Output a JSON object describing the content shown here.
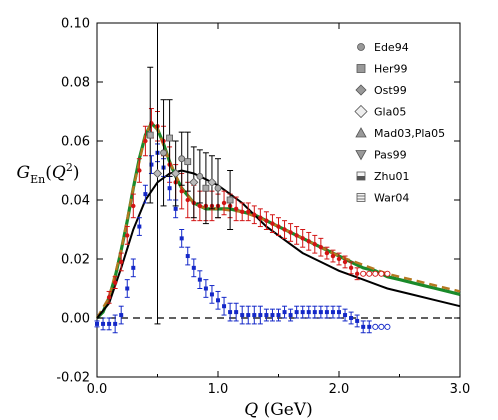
{
  "chart_data": {
    "type": "scatter",
    "xlim": [
      0,
      3.0
    ],
    "ylim": [
      -0.02,
      0.1
    ],
    "xticks": [
      "0.0",
      "1.0",
      "2.0",
      "3.0"
    ],
    "yticks": [
      "-0.02",
      "0.00",
      "0.02",
      "0.04",
      "0.06",
      "0.08",
      "0.10"
    ],
    "xlabel": "Q (GeV)",
    "ylabel": "G_En(Q^2)",
    "grid": false,
    "legend_position": "top-right",
    "legend": [
      {
        "label": "Ede94",
        "marker": "circle"
      },
      {
        "label": "Her99",
        "marker": "square"
      },
      {
        "label": "Ost99",
        "marker": "diamond"
      },
      {
        "label": "Gla05",
        "marker": "diamond-large"
      },
      {
        "label": "Mad03,Pla05",
        "marker": "triangle-up"
      },
      {
        "label": "Pas99",
        "marker": "triangle-down"
      },
      {
        "label": "Zhu01",
        "marker": "square-half"
      },
      {
        "label": "War04",
        "marker": "square-lines"
      }
    ],
    "experiments": {
      "points": [
        {
          "x": 0.44,
          "y": 0.062,
          "err": 0.023
        },
        {
          "x": 0.5,
          "y": 0.049,
          "err": 0.051
        },
        {
          "x": 0.55,
          "y": 0.056,
          "err": 0.018
        },
        {
          "x": 0.6,
          "y": 0.061,
          "err": 0.013
        },
        {
          "x": 0.65,
          "y": 0.049,
          "err": 0.011
        },
        {
          "x": 0.7,
          "y": 0.054,
          "err": 0.009
        },
        {
          "x": 0.75,
          "y": 0.053,
          "err": 0.01
        },
        {
          "x": 0.8,
          "y": 0.046,
          "err": 0.012
        },
        {
          "x": 0.85,
          "y": 0.048,
          "err": 0.009
        },
        {
          "x": 0.9,
          "y": 0.044,
          "err": 0.012
        },
        {
          "x": 0.95,
          "y": 0.046,
          "err": 0.009
        },
        {
          "x": 1.0,
          "y": 0.044,
          "err": 0.01
        },
        {
          "x": 1.1,
          "y": 0.04,
          "err": 0.01
        }
      ]
    },
    "series": [
      {
        "color": "#d21414",
        "marker": "filled-circle",
        "x": [
          0.1,
          0.15,
          0.2,
          0.25,
          0.3,
          0.35,
          0.4,
          0.45,
          0.5,
          0.55,
          0.6,
          0.65,
          0.7,
          0.75,
          0.8,
          0.85,
          0.9,
          0.95,
          1.0,
          1.05,
          1.1,
          1.15,
          1.2,
          1.25,
          1.3,
          1.35,
          1.4,
          1.45,
          1.5,
          1.55,
          1.6,
          1.65,
          1.7,
          1.75,
          1.8,
          1.85,
          1.9,
          1.95,
          2.0,
          2.05,
          2.1,
          2.15
        ],
        "y": [
          0.007,
          0.012,
          0.019,
          0.028,
          0.038,
          0.05,
          0.06,
          0.066,
          0.065,
          0.06,
          0.052,
          0.046,
          0.043,
          0.04,
          0.039,
          0.038,
          0.038,
          0.038,
          0.038,
          0.039,
          0.038,
          0.037,
          0.036,
          0.036,
          0.035,
          0.034,
          0.033,
          0.032,
          0.031,
          0.03,
          0.029,
          0.028,
          0.027,
          0.026,
          0.025,
          0.024,
          0.022,
          0.021,
          0.02,
          0.019,
          0.017,
          0.015
        ],
        "err": [
          0.002,
          0.002,
          0.003,
          0.003,
          0.004,
          0.004,
          0.005,
          0.005,
          0.005,
          0.005,
          0.006,
          0.006,
          0.006,
          0.006,
          0.006,
          0.005,
          0.005,
          0.005,
          0.004,
          0.004,
          0.004,
          0.004,
          0.003,
          0.003,
          0.003,
          0.003,
          0.003,
          0.003,
          0.003,
          0.003,
          0.003,
          0.003,
          0.003,
          0.003,
          0.003,
          0.003,
          0.002,
          0.002,
          0.002,
          0.002,
          0.002,
          0.002
        ]
      },
      {
        "color": "#d21414",
        "marker": "open-circle",
        "x": [
          2.2,
          2.25,
          2.3,
          2.35,
          2.4
        ],
        "y": [
          0.015,
          0.015,
          0.015,
          0.015,
          0.015
        ]
      },
      {
        "color": "#1428c8",
        "marker": "filled-square",
        "x": [
          0.0,
          0.05,
          0.1,
          0.15,
          0.2,
          0.25,
          0.3,
          0.35,
          0.4,
          0.45,
          0.5,
          0.55,
          0.6,
          0.65,
          0.7,
          0.75,
          0.8,
          0.85,
          0.9,
          0.95,
          1.0,
          1.05,
          1.1,
          1.15,
          1.2,
          1.25,
          1.3,
          1.35,
          1.4,
          1.45,
          1.5,
          1.55,
          1.6,
          1.65,
          1.7,
          1.75,
          1.8,
          1.85,
          1.9,
          1.95,
          2.0,
          2.05,
          2.1,
          2.15,
          2.2,
          2.25
        ],
        "y": [
          -0.002,
          -0.002,
          -0.002,
          -0.002,
          0.001,
          0.01,
          0.017,
          0.031,
          0.042,
          0.052,
          0.056,
          0.051,
          0.044,
          0.037,
          0.027,
          0.021,
          0.017,
          0.013,
          0.01,
          0.008,
          0.006,
          0.004,
          0.002,
          0.002,
          0.001,
          0.001,
          0.001,
          0.001,
          0.001,
          0.001,
          0.001,
          0.002,
          0.001,
          0.002,
          0.002,
          0.002,
          0.002,
          0.002,
          0.002,
          0.002,
          0.002,
          0.001,
          0.0,
          -0.001,
          -0.003,
          -0.003
        ],
        "err": [
          0.001,
          0.002,
          0.002,
          0.003,
          0.003,
          0.003,
          0.003,
          0.003,
          0.003,
          0.003,
          0.003,
          0.003,
          0.004,
          0.003,
          0.003,
          0.003,
          0.003,
          0.003,
          0.003,
          0.003,
          0.003,
          0.003,
          0.003,
          0.003,
          0.003,
          0.003,
          0.003,
          0.003,
          0.002,
          0.002,
          0.002,
          0.002,
          0.002,
          0.002,
          0.002,
          0.002,
          0.002,
          0.002,
          0.002,
          0.002,
          0.002,
          0.002,
          0.002,
          0.002,
          0.002,
          0.002
        ]
      },
      {
        "color": "#1428c8",
        "marker": "open-circle",
        "x": [
          2.3,
          2.35,
          2.4
        ],
        "y": [
          -0.003,
          -0.003,
          -0.003
        ]
      },
      {
        "color": "#1a8a2a",
        "marker": "line",
        "x": [
          0,
          0.05,
          0.1,
          0.15,
          0.2,
          0.25,
          0.3,
          0.35,
          0.4,
          0.45,
          0.5,
          0.55,
          0.6,
          0.65,
          0.7,
          0.8,
          0.9,
          1.0,
          1.1,
          1.2,
          1.3,
          1.4,
          1.5,
          1.6,
          1.7,
          1.8,
          1.9,
          2.0,
          2.1,
          2.2,
          2.3,
          2.4,
          2.5,
          2.6,
          2.7,
          2.8,
          2.9,
          3.0
        ],
        "y": [
          0.0,
          0.002,
          0.007,
          0.014,
          0.023,
          0.033,
          0.044,
          0.054,
          0.062,
          0.066,
          0.064,
          0.059,
          0.053,
          0.048,
          0.044,
          0.039,
          0.037,
          0.037,
          0.037,
          0.036,
          0.035,
          0.033,
          0.031,
          0.029,
          0.027,
          0.025,
          0.023,
          0.021,
          0.019,
          0.017,
          0.016,
          0.014,
          0.013,
          0.012,
          0.011,
          0.01,
          0.009,
          0.008
        ]
      },
      {
        "color": "#b47820",
        "marker": "dashed-line",
        "x": [
          0,
          0.1,
          0.2,
          0.3,
          0.4,
          0.45,
          0.5,
          0.6,
          0.7,
          0.8,
          0.9,
          1.0,
          1.2,
          1.4,
          1.6,
          1.8,
          2.0,
          2.2,
          2.4,
          2.6,
          2.8,
          3.0
        ],
        "y": [
          0.0,
          0.007,
          0.023,
          0.044,
          0.062,
          0.066,
          0.064,
          0.053,
          0.044,
          0.039,
          0.037,
          0.037,
          0.036,
          0.033,
          0.029,
          0.025,
          0.021,
          0.018,
          0.015,
          0.013,
          0.011,
          0.009
        ]
      },
      {
        "color": "#000000",
        "marker": "line",
        "x": [
          0,
          0.1,
          0.2,
          0.3,
          0.4,
          0.5,
          0.6,
          0.7,
          0.8,
          0.9,
          1.0,
          1.1,
          1.2,
          1.3,
          1.4,
          1.5,
          1.6,
          1.7,
          1.8,
          1.9,
          2.0,
          2.2,
          2.4,
          2.6,
          2.8,
          3.0
        ],
        "y": [
          0.0,
          0.005,
          0.017,
          0.03,
          0.04,
          0.046,
          0.049,
          0.05,
          0.049,
          0.047,
          0.045,
          0.042,
          0.039,
          0.035,
          0.031,
          0.028,
          0.025,
          0.022,
          0.02,
          0.018,
          0.016,
          0.013,
          0.01,
          0.008,
          0.006,
          0.004
        ]
      },
      {
        "color": "#000000",
        "marker": "dashed-line",
        "x": [
          0,
          3.0
        ],
        "y": [
          0,
          0
        ]
      }
    ]
  }
}
